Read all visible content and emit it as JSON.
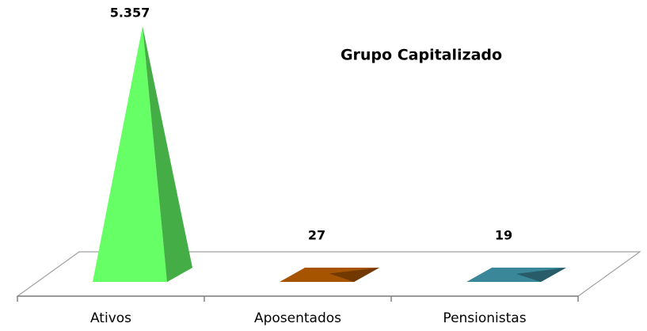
{
  "chart_data": {
    "type": "pyramid3d",
    "title": "Grupo Capitalizado",
    "categories": [
      "Ativos",
      "Aposentados",
      "Pensionistas"
    ],
    "values": [
      5357,
      27,
      19
    ],
    "value_labels": [
      "5.357",
      "27",
      "19"
    ],
    "colors": [
      "#66ff66",
      "#a65400",
      "#3a8799"
    ]
  }
}
